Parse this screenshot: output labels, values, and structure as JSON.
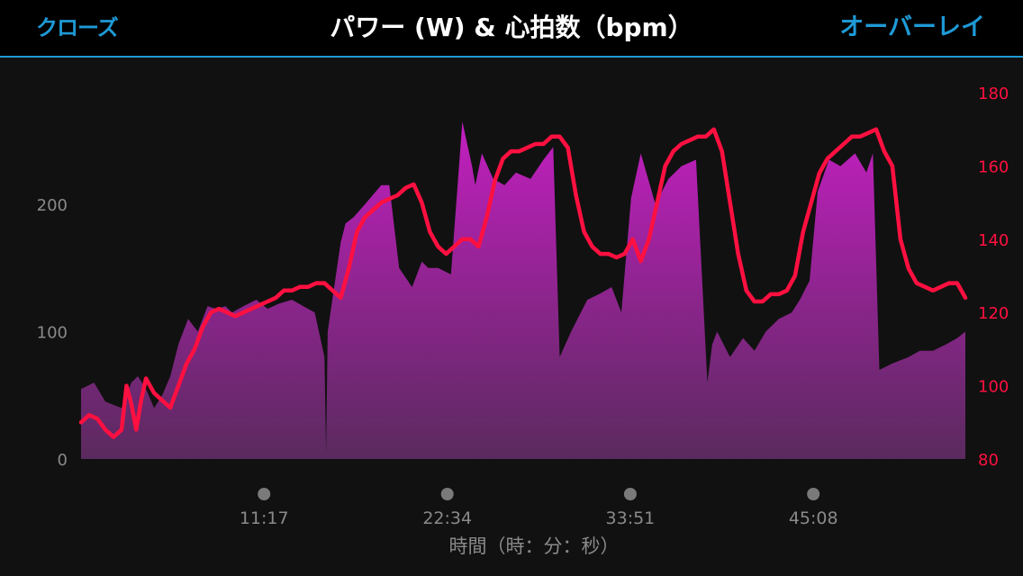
{
  "header": {
    "close_label": "クローズ",
    "title": "パワー (W) & 心拍数（bpm）",
    "overlay_label": "オーバーレイ"
  },
  "colors": {
    "header_bg": "#000000",
    "accent": "#1e9ad6",
    "power_fill_top": "#c31fc0",
    "power_fill_bottom": "#5a2a5e",
    "heart_rate_line": "#ff1040",
    "axis_text": "#8a8a8a",
    "hr_axis_text": "#ff1040"
  },
  "chart_data": {
    "type": "area",
    "xlabel": "時間（時：分：秒）",
    "x_ticks": [
      "11:17",
      "22:34",
      "33:51",
      "45:08"
    ],
    "x_tick_minutes": [
      11.28,
      22.57,
      33.85,
      45.13
    ],
    "xlim_minutes": [
      0,
      54.5
    ],
    "y_left": {
      "ylim": [
        0,
        270
      ],
      "ticks": [
        0,
        100,
        200
      ]
    },
    "y_right": {
      "ylim": [
        80,
        180
      ],
      "ticks": [
        80,
        100,
        120,
        140,
        160,
        180
      ]
    },
    "grid": false,
    "series": [
      {
        "type": "area",
        "axis": "left",
        "x": [
          0,
          0.8,
          1.5,
          2.5,
          3.1,
          3.5,
          4,
          4.5,
          5,
          5.5,
          6,
          6.6,
          7.2,
          7.8,
          8.3,
          8.9,
          9.3,
          10,
          10.8,
          11.5,
          12.2,
          13,
          13.7,
          14.4,
          15,
          15.1,
          15.2,
          16,
          16.3,
          16.8,
          17.5,
          18.5,
          19,
          19.6,
          20.4,
          21,
          21.4,
          22,
          22.8,
          23.5,
          24.1,
          24.3,
          24.7,
          25.4,
          26.1,
          26.8,
          27.7,
          28.5,
          29.1,
          29.5,
          30.2,
          31.2,
          32,
          32.7,
          33.3,
          33.9,
          34.5,
          35.4,
          36.2,
          37,
          37.9,
          38.6,
          38.9,
          39.2,
          40,
          40.8,
          41.5,
          42.2,
          43,
          43.8,
          44.3,
          44.9,
          45.4,
          46.1,
          46.8,
          47.7,
          48.4,
          48.8,
          49.2,
          50,
          51,
          51.7,
          52.5,
          53.3,
          54,
          54.5
        ],
        "values": [
          55,
          60,
          45,
          40,
          60,
          65,
          55,
          40,
          50,
          65,
          90,
          110,
          100,
          120,
          118,
          120,
          115,
          120,
          125,
          118,
          122,
          125,
          120,
          115,
          80,
          5,
          100,
          170,
          185,
          190,
          200,
          215,
          215,
          150,
          135,
          155,
          150,
          150,
          145,
          265,
          230,
          215,
          240,
          220,
          215,
          225,
          220,
          235,
          245,
          80,
          100,
          125,
          130,
          135,
          115,
          205,
          240,
          200,
          220,
          230,
          235,
          60,
          90,
          100,
          80,
          95,
          85,
          100,
          110,
          115,
          125,
          140,
          210,
          235,
          230,
          240,
          225,
          240,
          70,
          75,
          80,
          85,
          85,
          90,
          95,
          100
        ],
        "fill": true
      },
      {
        "type": "line",
        "axis": "right",
        "x": [
          0,
          0.5,
          1,
          1.5,
          2,
          2.5,
          2.8,
          3.1,
          3.4,
          3.7,
          4,
          4.5,
          5,
          5.5,
          6,
          6.5,
          7,
          7.5,
          8,
          8.5,
          9,
          9.5,
          10,
          10.5,
          11,
          11.5,
          12,
          12.5,
          13,
          13.5,
          14,
          14.5,
          15,
          15.5,
          16,
          16.5,
          17,
          17.5,
          18,
          18.5,
          19,
          19.5,
          20,
          20.5,
          21,
          21.5,
          22,
          22.5,
          23,
          23.5,
          24,
          24.5,
          25,
          25.5,
          26,
          26.5,
          27,
          27.5,
          28,
          28.5,
          29,
          29.5,
          30,
          30.5,
          31,
          31.5,
          32,
          32.5,
          33,
          33.5,
          34,
          34.5,
          35,
          35.5,
          36,
          36.5,
          37,
          37.5,
          38,
          38.5,
          39,
          39.5,
          40,
          40.5,
          41,
          41.5,
          42,
          42.5,
          43,
          43.5,
          44,
          44.5,
          45,
          45.5,
          46,
          46.5,
          47,
          47.5,
          48,
          48.5,
          49,
          49.5,
          50,
          50.5,
          51,
          51.5,
          52,
          52.5,
          53,
          53.5,
          54,
          54.5
        ],
        "values": [
          90,
          92,
          91,
          88,
          86,
          88,
          100,
          95,
          88,
          96,
          102,
          98,
          96,
          94,
          100,
          106,
          110,
          116,
          120,
          121,
          120,
          119,
          120,
          121,
          122,
          123,
          124,
          126,
          126,
          127,
          127,
          128,
          128,
          126,
          124,
          132,
          142,
          146,
          148,
          150,
          151,
          152,
          154,
          155,
          150,
          142,
          138,
          136,
          138,
          140,
          140,
          138,
          146,
          156,
          162,
          164,
          164,
          165,
          166,
          166,
          168,
          168,
          165,
          152,
          142,
          138,
          136,
          136,
          135,
          136,
          140,
          134,
          140,
          150,
          160,
          164,
          166,
          167,
          168,
          168,
          170,
          164,
          150,
          136,
          126,
          123,
          123,
          125,
          125,
          126,
          130,
          142,
          150,
          158,
          162,
          164,
          166,
          168,
          168,
          169,
          170,
          164,
          160,
          140,
          132,
          128,
          127,
          126,
          127,
          128,
          128,
          124
        ]
      }
    ]
  }
}
